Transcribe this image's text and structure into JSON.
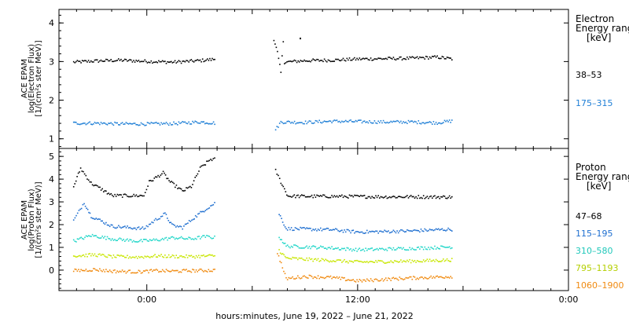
{
  "figure": {
    "xlabel": "hours:minutes, June 19, 2022 – June 21, 2022",
    "x_ticks": [
      "0:00",
      "12:00",
      "0:00"
    ]
  },
  "chart_data": [
    {
      "type": "scatter",
      "panel": "electron",
      "ylabel": [
        "ACE EPAM",
        "log(Electron Flux)",
        "[1/(cm²s ster MeV)]"
      ],
      "ylim": [
        0.75,
        4.35
      ],
      "y_ticks": [
        1,
        2,
        3,
        4
      ],
      "x_unit": "hours",
      "xlim": [
        -5,
        24
      ],
      "legend_title": [
        "Electron",
        "Energy range",
        "[keV]"
      ],
      "series": [
        {
          "name": "38–53",
          "color": "#000000",
          "segments": [
            {
              "x": [
                -4.2,
                -3.0,
                -1.5,
                0.0,
                1.5,
                3.0,
                3.9
              ],
              "y": [
                3.0,
                3.03,
                3.05,
                3.02,
                3.0,
                3.04,
                3.08
              ]
            },
            {
              "x": [
                7.2,
                7.4,
                7.6,
                7.8
              ],
              "y": [
                3.6,
                3.25,
                2.73,
                3.95
              ]
            },
            {
              "x": [
                7.8,
                9.0,
                10.5,
                12.0,
                13.5,
                15.0,
                16.5,
                17.4
              ],
              "y": [
                3.0,
                3.04,
                3.05,
                3.08,
                3.09,
                3.1,
                3.13,
                3.08
              ]
            }
          ],
          "outliers": {
            "x": [
              8.7
            ],
            "y": [
              3.62
            ]
          }
        },
        {
          "name": "175–315",
          "color": "#1f7fd6",
          "segments": [
            {
              "x": [
                -4.2,
                -3.0,
                -1.5,
                0.0,
                1.5,
                3.0,
                3.9
              ],
              "y": [
                1.42,
                1.42,
                1.4,
                1.4,
                1.41,
                1.45,
                1.42
              ]
            },
            {
              "x": [
                7.3,
                7.6,
                9.0,
                10.5,
                12.0,
                13.5,
                15.0,
                16.5,
                17.4
              ],
              "y": [
                1.25,
                1.45,
                1.44,
                1.47,
                1.46,
                1.45,
                1.45,
                1.43,
                1.48
              ]
            }
          ]
        }
      ]
    },
    {
      "type": "scatter",
      "panel": "proton",
      "ylabel": [
        "ACE EPAM",
        "log(Proton Flux)",
        "[1/(cm²s ster MeV)]"
      ],
      "ylim": [
        -0.9,
        5.35
      ],
      "y_ticks": [
        0,
        1,
        2,
        3,
        4,
        5
      ],
      "x_unit": "hours",
      "xlim": [
        -5,
        24
      ],
      "legend_title": [
        "Proton",
        "Energy range",
        "[keV]"
      ],
      "series": [
        {
          "name": "47–68",
          "color": "#000000",
          "segments": [
            {
              "x": [
                -4.2,
                -3.8,
                -3.2,
                -2.0,
                -0.2,
                0.1,
                0.9,
                1.3,
                2.0,
                2.5,
                3.0,
                3.6,
                3.9
              ],
              "y": [
                3.7,
                4.5,
                3.85,
                3.3,
                3.3,
                3.9,
                4.3,
                3.9,
                3.5,
                3.7,
                4.5,
                4.9,
                4.9
              ]
            },
            {
              "x": [
                7.3,
                7.6,
                8.0,
                9.0,
                10.5,
                12.0,
                13.5,
                15.0,
                16.5,
                17.4
              ],
              "y": [
                4.4,
                3.9,
                3.28,
                3.27,
                3.27,
                3.26,
                3.25,
                3.25,
                3.24,
                3.24
              ]
            }
          ]
        },
        {
          "name": "115–195",
          "color": "#1f6fd0",
          "segments": [
            {
              "x": [
                -4.2,
                -3.6,
                -3.2,
                -2.0,
                -0.2,
                0.4,
                1.0,
                1.4,
                2.0,
                2.6,
                3.3,
                3.9
              ],
              "y": [
                2.2,
                3.0,
                2.4,
                1.95,
                1.85,
                2.2,
                2.5,
                2.0,
                1.9,
                2.3,
                2.7,
                3.0
              ]
            },
            {
              "x": [
                7.5,
                7.9,
                9.0,
                10.5,
                12.0,
                13.5,
                15.0,
                16.5,
                17.4
              ],
              "y": [
                2.5,
                1.85,
                1.83,
                1.8,
                1.7,
                1.72,
                1.75,
                1.8,
                1.82
              ]
            }
          ]
        },
        {
          "name": "310–580",
          "color": "#20d6c8",
          "segments": [
            {
              "x": [
                -4.2,
                -3.2,
                -2.0,
                -0.5,
                0.5,
                1.5,
                2.5,
                3.3,
                3.9
              ],
              "y": [
                1.3,
                1.55,
                1.4,
                1.3,
                1.35,
                1.45,
                1.4,
                1.5,
                1.45
              ]
            },
            {
              "x": [
                7.5,
                7.9,
                9.0,
                10.5,
                12.0,
                13.5,
                15.0,
                16.5,
                17.4
              ],
              "y": [
                1.5,
                1.08,
                1.05,
                1.0,
                0.92,
                0.95,
                0.98,
                1.02,
                1.05
              ]
            }
          ]
        },
        {
          "name": "795–1193",
          "color": "#c8e600",
          "segments": [
            {
              "x": [
                -4.2,
                -3.0,
                -2.0,
                -0.5,
                0.5,
                1.5,
                2.5,
                3.9
              ],
              "y": [
                0.65,
                0.7,
                0.62,
                0.6,
                0.65,
                0.63,
                0.62,
                0.66
              ]
            },
            {
              "x": [
                7.5,
                7.9,
                9.0,
                10.5,
                12.0,
                13.5,
                15.0,
                16.5,
                17.4
              ],
              "y": [
                0.9,
                0.55,
                0.5,
                0.45,
                0.38,
                0.4,
                0.42,
                0.45,
                0.48
              ]
            }
          ]
        },
        {
          "name": "1060–1900",
          "color": "#f08a10",
          "segments": [
            {
              "x": [
                -4.2,
                -3.0,
                -2.0,
                -0.5,
                0.5,
                1.5,
                2.5,
                3.9
              ],
              "y": [
                0.0,
                0.05,
                -0.02,
                -0.05,
                0.0,
                -0.02,
                0.0,
                0.02
              ]
            },
            {
              "x": [
                7.4,
                7.9,
                9.0,
                10.5,
                12.0,
                13.5,
                15.0,
                16.5,
                17.4
              ],
              "y": [
                0.8,
                -0.35,
                -0.25,
                -0.3,
                -0.45,
                -0.38,
                -0.32,
                -0.28,
                -0.25
              ]
            }
          ]
        }
      ]
    }
  ]
}
